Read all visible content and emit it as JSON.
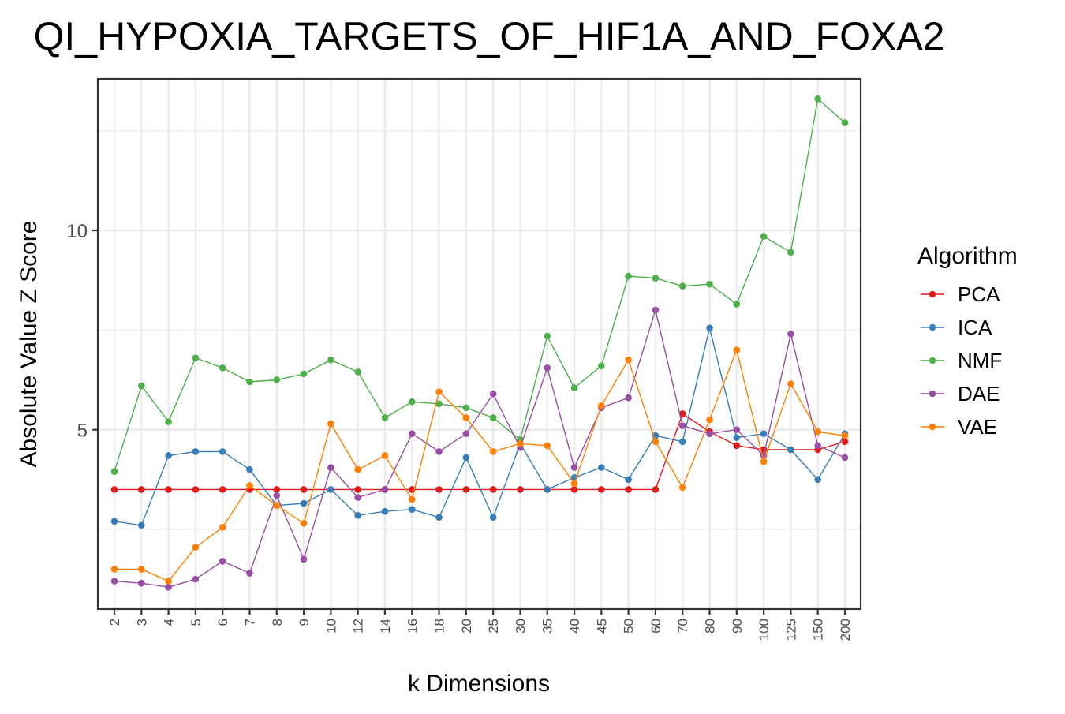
{
  "chart_data": {
    "type": "line",
    "title": "QI_HYPOXIA_TARGETS_OF_HIF1A_AND_FOXA2",
    "xlabel": "k Dimensions",
    "ylabel": "Absolute Value Z Score",
    "categories": [
      "2",
      "3",
      "4",
      "5",
      "6",
      "7",
      "8",
      "9",
      "10",
      "12",
      "14",
      "16",
      "18",
      "20",
      "25",
      "30",
      "35",
      "40",
      "45",
      "50",
      "60",
      "70",
      "80",
      "90",
      "100",
      "125",
      "150",
      "200"
    ],
    "ylim": [
      0.5,
      13.8
    ],
    "yticks": [
      5,
      10
    ],
    "grid": true,
    "legend": {
      "title": "Algorithm",
      "position": "right"
    },
    "series": [
      {
        "name": "PCA",
        "color": "#e41a1c",
        "values": [
          3.5,
          3.5,
          3.5,
          3.5,
          3.5,
          3.5,
          3.5,
          3.5,
          3.5,
          3.5,
          3.5,
          3.5,
          3.5,
          3.5,
          3.5,
          3.5,
          3.5,
          3.5,
          3.5,
          3.5,
          3.5,
          5.4,
          4.95,
          4.6,
          4.5,
          4.5,
          4.5,
          4.7
        ]
      },
      {
        "name": "ICA",
        "color": "#377eb8",
        "values": [
          2.7,
          2.6,
          4.35,
          4.45,
          4.45,
          4.0,
          3.1,
          3.15,
          3.5,
          2.85,
          2.95,
          3.0,
          2.8,
          4.3,
          2.8,
          4.65,
          3.5,
          3.8,
          4.05,
          3.75,
          4.85,
          4.7,
          7.55,
          4.8,
          4.9,
          4.5,
          3.75,
          4.9
        ]
      },
      {
        "name": "NMF",
        "color": "#4daf4a",
        "values": [
          3.95,
          6.1,
          5.2,
          6.8,
          6.55,
          6.2,
          6.25,
          6.4,
          6.75,
          6.45,
          5.3,
          5.7,
          5.65,
          5.55,
          5.3,
          4.75,
          7.35,
          6.05,
          6.6,
          8.85,
          8.8,
          8.6,
          8.65,
          8.15,
          9.85,
          9.45,
          13.3,
          12.7
        ]
      },
      {
        "name": "DAE",
        "color": "#984ea3",
        "values": [
          1.2,
          1.15,
          1.05,
          1.25,
          1.7,
          1.4,
          3.35,
          1.75,
          4.05,
          3.3,
          3.5,
          4.9,
          4.45,
          4.9,
          5.9,
          4.55,
          6.55,
          4.05,
          5.55,
          5.8,
          8.0,
          5.1,
          4.9,
          5.0,
          4.35,
          7.4,
          4.6,
          4.3
        ]
      },
      {
        "name": "VAE",
        "color": "#ff7f00",
        "values": [
          1.5,
          1.5,
          1.2,
          2.05,
          2.55,
          3.6,
          3.1,
          2.65,
          5.15,
          4.0,
          4.35,
          3.25,
          5.95,
          5.3,
          4.45,
          4.65,
          4.6,
          3.65,
          5.6,
          6.75,
          4.7,
          3.55,
          5.25,
          7.0,
          4.2,
          6.15,
          4.95,
          4.85
        ]
      }
    ]
  }
}
